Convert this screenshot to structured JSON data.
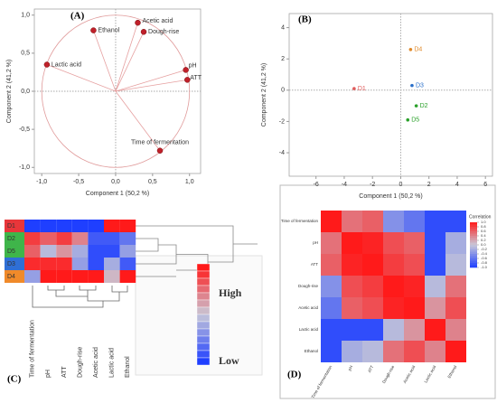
{
  "chart_data": [
    {
      "type": "loading",
      "title": "(A)",
      "xlabel": "Component 1 (50,2 %)",
      "ylabel": "Component 2 (41,2 %)",
      "xlim": [
        -1.1,
        1.15
      ],
      "ylim": [
        -1.08,
        1.08
      ],
      "xticks": [
        {
          "value": -1,
          "label": "-1,0"
        },
        {
          "value": -0.5,
          "label": "-0,5"
        },
        {
          "value": 0,
          "label": "0,0"
        },
        {
          "value": 0.5,
          "label": "0,5"
        },
        {
          "value": 1,
          "label": "1,0"
        }
      ],
      "yticks": [
        {
          "value": -1,
          "label": "-1,0"
        },
        {
          "value": -0.5,
          "label": "-0,5"
        },
        {
          "value": 0,
          "label": "0,0"
        },
        {
          "value": 0.5,
          "label": "0,5"
        },
        {
          "value": 1,
          "label": "1,0"
        }
      ],
      "color": "#c0202a",
      "labels": [
        "Ethanol",
        "Acetic acid",
        "Dough-rise",
        "Lactic acid",
        "pH",
        "ATT",
        "Time of fermentation"
      ],
      "x": [
        -0.3,
        0.3,
        0.38,
        -0.93,
        0.95,
        0.97,
        0.6
      ],
      "y": [
        0.8,
        0.9,
        0.78,
        0.35,
        0.28,
        0.15,
        -0.78
      ]
    },
    {
      "type": "scatter",
      "title": "(B)",
      "xlabel": "Component 1 (50,2 %)",
      "ylabel": "Component 2 (41,2 %)",
      "xlim": [
        -7.9,
        6.5
      ],
      "ylim": [
        -5.5,
        4.9
      ],
      "xticks": [
        -6,
        -4,
        -2,
        0,
        2,
        4,
        6
      ],
      "yticks": [
        -4,
        -2,
        0,
        2,
        4
      ],
      "labels": [
        "D1",
        "D4",
        "D3",
        "D2",
        "D5"
      ],
      "x": [
        -3.3,
        0.7,
        0.8,
        1.1,
        0.5
      ],
      "y": [
        0.1,
        2.6,
        0.3,
        -1.0,
        -1.9
      ],
      "colors": [
        "#e05a5a",
        "#e08a2a",
        "#2a6fc9",
        "#2aa02a",
        "#2aa02a"
      ]
    },
    {
      "type": "heatmap",
      "title": "(C)",
      "rows": [
        "D1",
        "D2",
        "D5",
        "D3",
        "D4"
      ],
      "row_colors": [
        "#e8363a",
        "#3fb54a",
        "#3fb54a",
        "#2f6fd6",
        "#f08a2a"
      ],
      "columns": [
        "Time of fermentation",
        "pH",
        "ATT",
        "Dough-rise",
        "Acetic acid",
        "Lactic acid",
        "Ethanol"
      ],
      "values": [
        [
          -1,
          -1,
          -1,
          -1,
          -1,
          1,
          1
        ],
        [
          0.8,
          0.6,
          0.8,
          0.4,
          -0.8,
          -0.8,
          -0.6
        ],
        [
          0.6,
          -0.1,
          0.3,
          -0.2,
          -0.9,
          -0.9,
          -0.3
        ],
        [
          0.9,
          0.9,
          0.9,
          -0.3,
          -0.9,
          -0.2,
          -0.8
        ],
        [
          -0.3,
          1,
          1,
          1,
          1,
          0.1,
          1
        ]
      ],
      "clim": [
        -1,
        1
      ],
      "colors": [
        "#1f3fff",
        "#c8c8d8",
        "#ff1a1a"
      ],
      "legend_high": "High",
      "legend_low": "Low"
    },
    {
      "type": "correlation",
      "title": "(D)",
      "labels": [
        "Time of fermentation",
        "pH",
        "ATT",
        "Dough-rise",
        "Acetic acid",
        "Lactic acid",
        "Ethanol"
      ],
      "values": [
        [
          1,
          0.5,
          0.6,
          -0.4,
          -0.6,
          -0.9,
          -0.9
        ],
        [
          0.5,
          1,
          0.95,
          0.7,
          0.6,
          -0.9,
          -0.2
        ],
        [
          0.6,
          0.95,
          1,
          0.8,
          0.7,
          -0.9,
          -0.1
        ],
        [
          -0.4,
          0.7,
          0.8,
          1,
          0.95,
          -0.1,
          0.5
        ],
        [
          -0.6,
          0.6,
          0.7,
          0.95,
          1,
          0.3,
          0.7
        ],
        [
          -0.9,
          -0.9,
          -0.9,
          -0.1,
          0.3,
          1,
          0.4
        ],
        [
          -0.9,
          -0.2,
          -0.1,
          0.5,
          0.7,
          0.4,
          1
        ]
      ],
      "clim": [
        -1,
        1
      ],
      "colors": [
        "#1f3fff",
        "#c8c8d8",
        "#ff1a1a"
      ],
      "colorbar_title": "Correlation",
      "colorbar_ticks": [
        {
          "value": 1,
          "label": "1.0"
        },
        0.8,
        0.6,
        0.4,
        0.2,
        {
          "value": 0,
          "label": "0.0"
        },
        -0.2,
        -0.4,
        -0.6,
        -0.8,
        {
          "value": -1,
          "label": "-1.0"
        }
      ]
    }
  ]
}
